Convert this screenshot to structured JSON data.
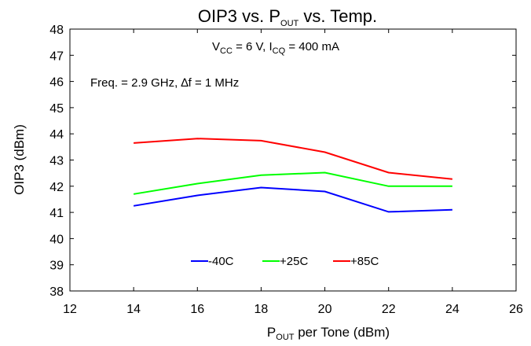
{
  "chart_data": {
    "type": "line",
    "title": {
      "main": "OIP3 vs. P",
      "sub": "OUT",
      "rest": " vs. Temp."
    },
    "xlabel": {
      "main": "P",
      "sub": "OUT",
      "rest": " per Tone (dBm)"
    },
    "ylabel": "OIP3 (dBm)",
    "xlim": [
      12,
      26
    ],
    "ylim": [
      38,
      48
    ],
    "xticks": [
      "12",
      "14",
      "16",
      "18",
      "20",
      "22",
      "24",
      "26"
    ],
    "yticks": [
      "38",
      "39",
      "40",
      "41",
      "42",
      "43",
      "44",
      "45",
      "46",
      "47",
      "48"
    ],
    "grid": false,
    "legend_position": "bottom-center",
    "annotations": {
      "bias": {
        "a": "V",
        "a_sub": "CC",
        "b": " = 6 V, I",
        "b_sub": "CQ",
        "c": " = 400 mA"
      },
      "freq": "Freq. = 2.9 GHz, ∆f = 1 MHz"
    },
    "x": [
      14,
      16,
      18,
      20,
      22,
      24
    ],
    "series": [
      {
        "name": "-40C",
        "color": "#0000ff",
        "values": [
          41.25,
          41.65,
          41.95,
          41.8,
          41.02,
          41.1
        ]
      },
      {
        "name": "+25C",
        "color": "#00ff00",
        "values": [
          41.7,
          42.1,
          42.42,
          42.52,
          42.0,
          42.0
        ]
      },
      {
        "name": "+85C",
        "color": "#ff0000",
        "values": [
          43.65,
          43.82,
          43.74,
          43.3,
          42.52,
          42.27
        ]
      }
    ]
  }
}
